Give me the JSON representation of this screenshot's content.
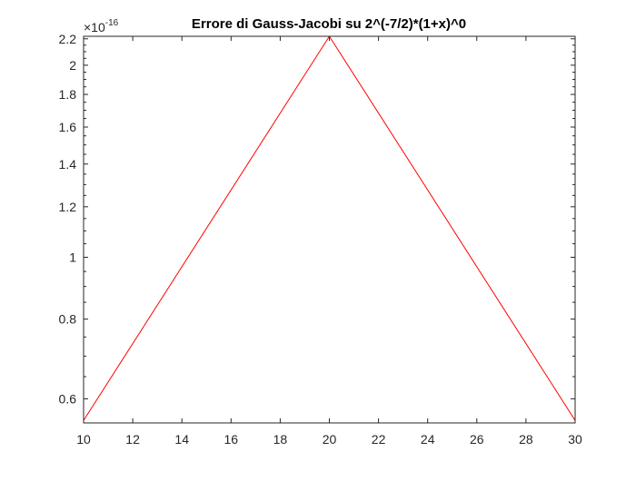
{
  "chart_data": {
    "type": "line",
    "title": "Errore di Gauss-Jacobi su 2^(-7/2)*(1+x)^0",
    "xlabel": "",
    "ylabel": "",
    "xlim": [
      10,
      30
    ],
    "ylim": [
      5.5e-17,
      2.22e-16
    ],
    "yscale": "log",
    "y_multiplier": {
      "prefix": "×10",
      "exponent": "-16"
    },
    "x_ticks": [
      10,
      12,
      14,
      16,
      18,
      20,
      22,
      24,
      26,
      28,
      30
    ],
    "x_tick_labels": [
      "10",
      "12",
      "14",
      "16",
      "18",
      "20",
      "22",
      "24",
      "26",
      "28",
      "30"
    ],
    "y_ticks": [
      6e-17,
      8e-17,
      1e-16,
      1.2e-16,
      1.4e-16,
      1.6e-16,
      1.8e-16,
      2e-16,
      2.2e-16
    ],
    "y_tick_labels": [
      "0.6",
      "0.8",
      "1",
      "1.2",
      "1.4",
      "1.6",
      "1.8",
      "2",
      "2.2"
    ],
    "grid": false,
    "box": true,
    "series": [
      {
        "color": "#ff0000",
        "x": [
          10,
          20,
          30
        ],
        "y": [
          5.55e-17,
          2.22e-16,
          5.55e-17
        ]
      }
    ]
  }
}
